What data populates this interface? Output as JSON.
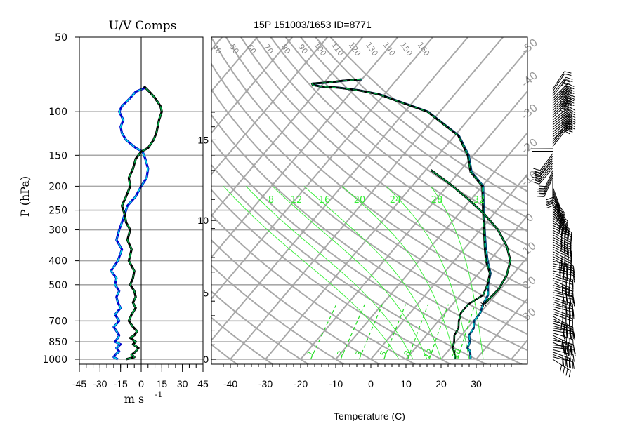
{
  "left_panel": {
    "title": "U/V Comps",
    "ylabel": "P (hPa)",
    "xlabel": "m s",
    "xlabel_exponent": "-1",
    "pressure_ticks": [
      "50",
      "100",
      "150",
      "200",
      "250",
      "300",
      "400",
      "500",
      "700",
      "850",
      "1000"
    ],
    "x_ticks": [
      "-45",
      "-30",
      "-15",
      "0",
      "15",
      "30",
      "45"
    ],
    "xlim": [
      -45,
      45
    ]
  },
  "right_panel": {
    "title": "15P 151003/1653 ID=8771",
    "xlabel": "Temperature (C)",
    "temp_ticks": [
      "-40",
      "-30",
      "-20",
      "-10",
      "0",
      "10",
      "20",
      "30"
    ],
    "height_ticks": [
      "0",
      "5",
      "10",
      "15"
    ],
    "dry_adiabat_labels": [
      "40",
      "50",
      "60",
      "70",
      "80",
      "90",
      "100",
      "110",
      "120",
      "130",
      "140",
      "150",
      "160"
    ],
    "isotherm_edge_labels": [
      "-50",
      "-40",
      "-30",
      "-20",
      "-10",
      "0",
      "10",
      "20",
      "30"
    ],
    "moist_adiabat_labels": [
      "8",
      "12",
      "16",
      "20",
      "24",
      "28",
      "32"
    ],
    "mixing_ratio_labels": [
      "1",
      "2",
      "3",
      "5",
      "8",
      "12",
      "20"
    ],
    "parcel_marker": "*"
  },
  "colors": {
    "background": "#ffffff",
    "grid": "#a8a8a8",
    "moist_adiabat": "#33ee33",
    "mixing_ratio": "#22dd22",
    "temperature": "#003060",
    "temperature_highlight": "#00c8c8",
    "dewpoint": "#000000",
    "dewpoint_highlight": "#00aa44",
    "u_wind": "#0000cc",
    "v_wind": "#00e0e0",
    "parcel": "#000000"
  },
  "chart_data": [
    {
      "type": "line",
      "title": "U/V Comps",
      "ylabel": "P (hPa)",
      "xlabel": "m s -1",
      "y_scale": "log-pressure",
      "ylim": [
        1000,
        50
      ],
      "xlim": [
        -45,
        45
      ],
      "series": [
        {
          "key": "u",
          "x": [
            -17,
            -20,
            -19,
            -16,
            -18,
            -15,
            -19,
            -17,
            -16,
            -18,
            -20,
            -16,
            -19,
            -15,
            -17,
            -18,
            -16,
            -19,
            -18,
            -22,
            -17,
            -14,
            -18,
            -16,
            -14,
            -12,
            -10,
            -4,
            0,
            4,
            5,
            3,
            1,
            -4,
            -11,
            -14,
            -15,
            -13,
            -16,
            -14,
            -8,
            -4,
            3,
            2
          ],
          "y": [
            1000,
            980,
            960,
            930,
            900,
            870,
            850,
            820,
            800,
            770,
            740,
            700,
            660,
            620,
            590,
            560,
            530,
            500,
            470,
            440,
            400,
            360,
            330,
            300,
            280,
            260,
            240,
            220,
            200,
            185,
            170,
            155,
            145,
            140,
            130,
            122,
            115,
            108,
            100,
            95,
            88,
            83,
            80,
            79
          ]
        },
        {
          "key": "v",
          "x": [
            -11,
            -5,
            -7,
            -4,
            -2,
            -6,
            -4,
            -8,
            -5,
            -3,
            -6,
            -9,
            -7,
            -4,
            -6,
            -4,
            -5,
            -8,
            -6,
            -5,
            -9,
            -7,
            -10,
            -8,
            -11,
            -12,
            -14,
            -11,
            -8,
            -9,
            -6,
            -4,
            0,
            5,
            9,
            11,
            12,
            13,
            15,
            14,
            10,
            6,
            3,
            2
          ],
          "y": [
            1000,
            980,
            960,
            930,
            900,
            870,
            850,
            820,
            800,
            770,
            740,
            700,
            660,
            620,
            590,
            560,
            530,
            500,
            470,
            440,
            400,
            360,
            330,
            300,
            280,
            260,
            240,
            220,
            200,
            185,
            170,
            155,
            145,
            140,
            130,
            122,
            115,
            108,
            100,
            95,
            88,
            83,
            80,
            79
          ]
        }
      ]
    },
    {
      "type": "line",
      "title": "15P 151003/1653 ID=8771",
      "xlabel": "Temperature (C)",
      "y_scale": "log-pressure",
      "ylim": [
        1000,
        50
      ],
      "xlim": [
        -43,
        42
      ],
      "series": [
        {
          "key": "temperature",
          "temp_c": [
            28.4,
            27.0,
            26.2,
            24.8,
            24.0,
            22.2,
            21.8,
            20.2,
            20.0,
            18.7,
            17.9,
            15.4,
            13.4,
            9.5,
            5.5,
            1.2,
            -3.8,
            -9.7,
            -16.5,
            -21.3,
            -28.8,
            -43.4,
            -55.2,
            -61.5,
            -68.0,
            -74.5,
            -80.2,
            -82.5,
            -83.0,
            -78.0,
            -75.0,
            -70.0
          ],
          "pressure": [
            1000,
            950,
            925,
            900,
            850,
            800,
            750,
            700,
            650,
            600,
            550,
            500,
            450,
            400,
            350,
            300,
            250,
            200,
            175,
            150,
            125,
            100,
            90,
            85,
            82,
            80,
            79,
            78,
            77,
            76,
            75,
            74
          ]
        },
        {
          "key": "dewpoint",
          "temp_c": [
            24.0,
            22.5,
            21.7,
            20.5,
            19.5,
            18.0,
            17.5,
            15.8,
            14.5,
            14.5,
            16.5,
            15.2,
            13.2,
            9.0,
            5.2,
            1.0,
            -4.0,
            -10.0,
            -16.8,
            -21.6,
            -29.0,
            -43.6,
            -55.4,
            -61.7,
            -68.2,
            -74.7,
            -80.4,
            -82.7,
            -83.2,
            -78.2,
            -75.2,
            -70.2
          ],
          "pressure": [
            1000,
            950,
            925,
            900,
            850,
            800,
            750,
            700,
            650,
            600,
            550,
            500,
            450,
            400,
            350,
            300,
            250,
            200,
            175,
            150,
            125,
            100,
            90,
            85,
            82,
            80,
            79,
            78,
            77,
            76,
            75,
            74
          ]
        },
        {
          "key": "parcel",
          "temp_c": [
            19.0,
            19.5,
            18.5,
            16.0,
            11.5,
            5.0,
            -2.5,
            -11.0,
            -20.0,
            -28.5
          ],
          "pressure": [
            595,
            520,
            460,
            400,
            350,
            300,
            260,
            225,
            195,
            172
          ]
        }
      ]
    }
  ]
}
